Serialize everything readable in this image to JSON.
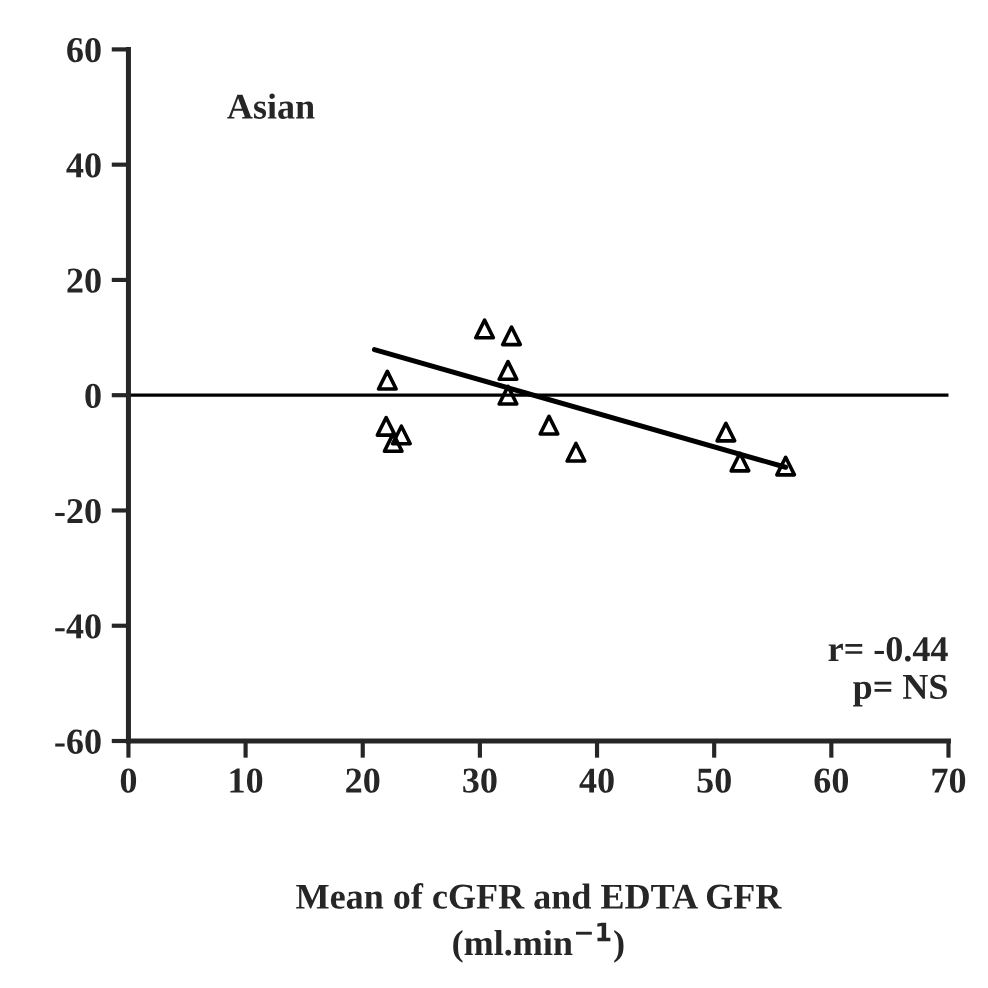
{
  "chart_data": {
    "type": "scatter",
    "xlabel": "Mean of cGFR and EDTA GFR\n(ml.min$^{−1}$)",
    "annotations": [
      "Asian",
      "r= -0.44\np= NS"
    ],
    "xlim": [
      0,
      70
    ],
    "xticks": [
      0,
      10,
      20,
      30,
      40,
      50,
      60,
      70
    ],
    "ylim": [
      -60,
      60
    ],
    "yticks": [
      -60,
      -40,
      -20,
      0,
      20,
      40,
      60
    ],
    "grid": false,
    "legend": false,
    "series": [
      {
        "color": "#000000",
        "marker": "triangle",
        "x": [
          22.1,
          22.0,
          22.6,
          23.3,
          30.4,
          32.7,
          32.4,
          32.4,
          35.9,
          38.2,
          51.0,
          52.2,
          56.1
        ],
        "values": [
          2.6,
          -5.4,
          -8.2,
          -6.9,
          11.5,
          10.3,
          4.3,
          0,
          -5.2,
          -9.9,
          -6.4,
          -11.6,
          -12.3
        ]
      },
      {
        "type": "line",
        "color": "#000000",
        "line_style": "solid",
        "marker": "none",
        "x": [
          21.0,
          56.1
        ],
        "values": [
          7.9,
          -12.5
        ]
      }
    ],
    "ref_lines": [
      {
        "axis": "y",
        "value": 0,
        "color": "#000000",
        "line_style": "solid"
      }
    ]
  }
}
